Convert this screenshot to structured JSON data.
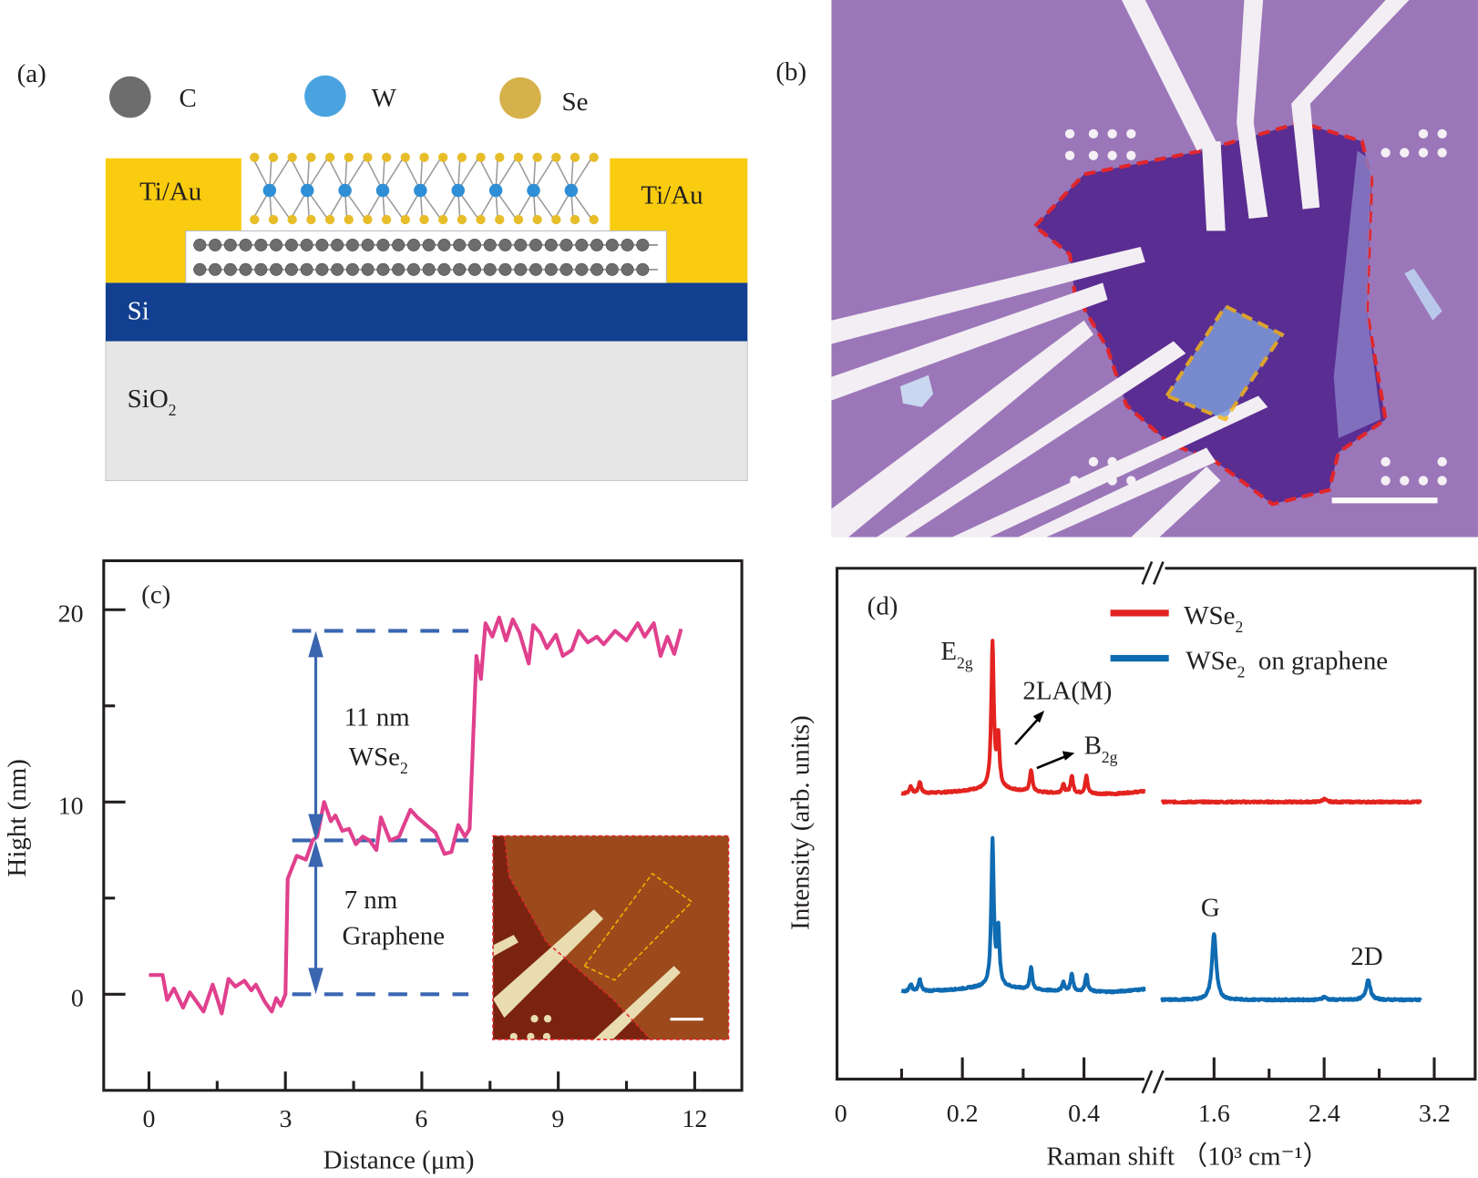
{
  "panel_a": {
    "label": "(a)",
    "legend": [
      {
        "symbol": "C",
        "color": "#6d6d6d"
      },
      {
        "symbol": "W",
        "color": "#4aa3df"
      },
      {
        "symbol": "Se",
        "color": "#d6b04a"
      }
    ],
    "contact_left": "Ti/Au",
    "contact_right": "Ti/Au",
    "layer_si": "Si",
    "layer_sio2": {
      "main": "SiO",
      "sub": "2"
    },
    "colors": {
      "contact": "#f9cc10",
      "si": "#123f8f",
      "sio2": "#e6e6e6"
    }
  },
  "panel_b": {
    "label": "(b)",
    "colors": {
      "substrate": "#9b77b9",
      "flake": "#5a2d92",
      "outline": "#e0262b",
      "inner_box": "#f2b81d"
    }
  },
  "chart_data": [
    {
      "panel_label": "(c)",
      "type": "line",
      "xlabel": "Distance (μm)",
      "ylabel": "Hight (nm)",
      "xlim": [
        -1,
        13
      ],
      "ylim": [
        -5,
        22.5
      ],
      "xticks": [
        "0",
        "3",
        "6",
        "9",
        "12"
      ],
      "yticks": [
        "0",
        "10",
        "20"
      ],
      "line_color": "#e0408d",
      "x": [
        0,
        0.3,
        0.4,
        0.55,
        0.75,
        0.9,
        1.05,
        1.2,
        1.4,
        1.55,
        1.6,
        1.75,
        1.9,
        2.1,
        2.25,
        2.35,
        2.55,
        2.7,
        2.8,
        2.9,
        3.0,
        3.05,
        3.25,
        3.45,
        3.6,
        3.7,
        3.85,
        4.0,
        4.1,
        4.25,
        4.4,
        4.55,
        4.7,
        4.85,
        5.0,
        5.1,
        5.3,
        5.5,
        5.75,
        5.9,
        6.1,
        6.3,
        6.5,
        6.65,
        6.8,
        6.95,
        7.05,
        7.2,
        7.3,
        7.4,
        7.55,
        7.7,
        7.85,
        8.0,
        8.15,
        8.35,
        8.45,
        8.6,
        8.75,
        8.95,
        9.1,
        9.3,
        9.45,
        9.65,
        9.85,
        10.0,
        10.25,
        10.5,
        10.75,
        10.9,
        11.1,
        11.25,
        11.4,
        11.55,
        11.7
      ],
      "y": [
        1.0,
        1.0,
        -0.3,
        0.3,
        -0.7,
        0.1,
        -0.4,
        -0.9,
        0.5,
        -0.6,
        -1.0,
        0.8,
        0.4,
        0.7,
        0.2,
        0.5,
        -0.4,
        -0.9,
        -0.2,
        -0.6,
        0.0,
        6.0,
        7.2,
        7.0,
        8.0,
        8.2,
        10.0,
        9.0,
        9.3,
        8.5,
        8.6,
        7.8,
        8.2,
        8.0,
        7.5,
        9.2,
        8.0,
        8.2,
        9.6,
        9.2,
        8.8,
        8.4,
        7.3,
        7.4,
        8.8,
        8.2,
        8.6,
        17.6,
        16.4,
        19.3,
        18.6,
        19.6,
        18.4,
        19.5,
        18.8,
        17.2,
        19.2,
        18.8,
        18.0,
        18.7,
        17.6,
        17.9,
        18.9,
        18.3,
        18.6,
        18.2,
        18.9,
        18.4,
        19.3,
        18.6,
        19.3,
        17.6,
        18.6,
        17.7,
        19.0
      ],
      "reference_levels_nm": [
        0,
        8,
        18.9
      ],
      "annotations": [
        {
          "value": "11 nm",
          "material": {
            "main": "WSe",
            "sub": "2"
          }
        },
        {
          "value": "7 nm",
          "material": {
            "main": "Graphene",
            "sub": ""
          }
        }
      ],
      "arrow_color": "#3a66b0"
    },
    {
      "panel_label": "(d)",
      "type": "line",
      "xlabel": "Raman shift （10³ cm⁻¹）",
      "ylabel": "Intensity (arb. units)",
      "x_broken_axis": {
        "segment1": [
          0,
          0.52
        ],
        "segment2": [
          1.22,
          3.3
        ]
      },
      "xticks": [
        "0",
        "0.2",
        "0.4",
        "1.6",
        "2.4",
        "3.2"
      ],
      "legend_position": "top-right",
      "series": [
        {
          "name": {
            "main": "WSe",
            "sub": "2",
            "rest": ""
          },
          "color": "#e3231f",
          "range1": [
            0.1,
            0.5
          ],
          "range2": [
            1.22,
            3.1
          ],
          "peaks": [
            {
              "x": 0.115,
              "intensity": 5
            },
            {
              "x": 0.13,
              "intensity": 8
            },
            {
              "x": 0.2496,
              "intensity": 100
            },
            {
              "x": 0.259,
              "intensity": 35
            },
            {
              "x": 0.313,
              "intensity": 15
            },
            {
              "x": 0.366,
              "intensity": 6
            },
            {
              "x": 0.38,
              "intensity": 12
            },
            {
              "x": 0.404,
              "intensity": 12
            },
            {
              "x": 2.4,
              "intensity": 2
            }
          ]
        },
        {
          "name": {
            "main": "WSe",
            "sub": "2",
            "rest": "  on graphene"
          },
          "color": "#0f6bb2",
          "range1": [
            0.1,
            0.5
          ],
          "range2": [
            1.22,
            3.1
          ],
          "peaks": [
            {
              "x": 0.115,
              "intensity": 5
            },
            {
              "x": 0.13,
              "intensity": 8
            },
            {
              "x": 0.2496,
              "intensity": 100
            },
            {
              "x": 0.259,
              "intensity": 38
            },
            {
              "x": 0.313,
              "intensity": 15
            },
            {
              "x": 0.366,
              "intensity": 6
            },
            {
              "x": 0.38,
              "intensity": 12
            },
            {
              "x": 0.404,
              "intensity": 12
            },
            {
              "x": 1.6,
              "intensity": 46
            },
            {
              "x": 2.4,
              "intensity": 2
            },
            {
              "x": 2.72,
              "intensity": 14
            }
          ]
        }
      ],
      "peak_labels": {
        "e2g": {
          "main": "E",
          "sub": "2g"
        },
        "la": "2LA(M)",
        "b2g": {
          "main": "B",
          "sub": "2g"
        },
        "g": "G",
        "d2": "2D"
      }
    }
  ]
}
